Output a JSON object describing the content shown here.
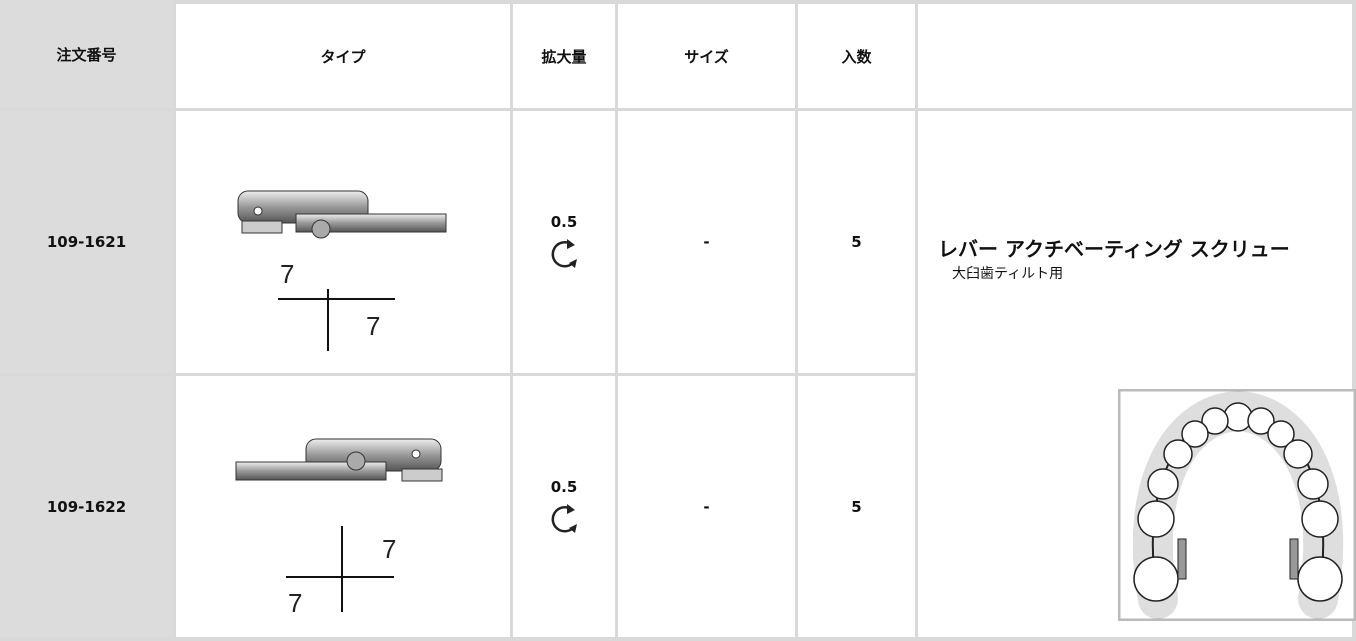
{
  "table": {
    "header": [
      "注文番号",
      "タイプ",
      "拡大量",
      "サイズ",
      "入数"
    ],
    "rows": [
      {
        "order_no": "109-1621",
        "notation": {
          "upper": "7",
          "lower": "7"
        },
        "expansion": "0.5",
        "size": "-",
        "quantity": "5"
      },
      {
        "order_no": "109-1622",
        "notation": {
          "upper": "7",
          "lower": "7"
        },
        "expansion": "0.5",
        "size": "-",
        "quantity": "5"
      }
    ],
    "description": {
      "title": "レバー アクチベーティング スクリュー",
      "subtitle": "大臼歯ティルト用"
    }
  }
}
